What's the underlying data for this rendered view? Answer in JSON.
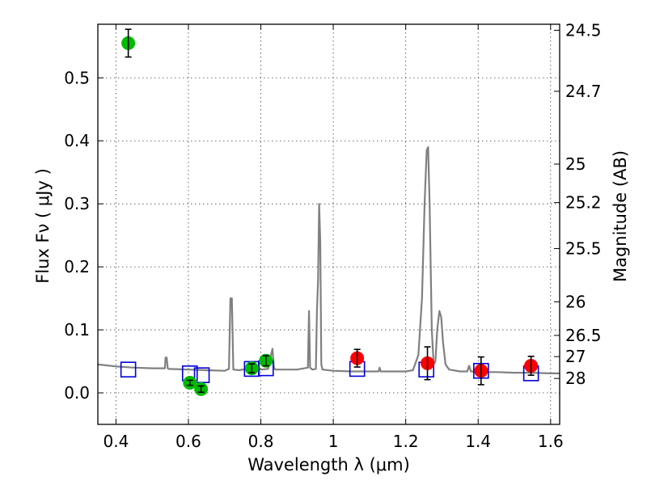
{
  "chart_data": {
    "type": "scatter",
    "xlabel": "Wavelength  λ (μm)",
    "ylabel": "Flux  Fν  ( μJy )",
    "y2label": "Magnitude (AB)",
    "xlim": [
      0.35,
      1.625
    ],
    "ylim": [
      -0.05,
      0.585
    ],
    "xticks": [
      0.4,
      0.6,
      0.8,
      1.0,
      1.2,
      1.4,
      1.6
    ],
    "xtick_labels": [
      "0.4",
      "0.6",
      "0.8",
      "1",
      "1.2",
      "1.4",
      "1.6"
    ],
    "yticks": [
      0.0,
      0.1,
      0.2,
      0.3,
      0.4,
      0.5
    ],
    "ytick_labels": [
      "0.0",
      "0.1",
      "0.2",
      "0.3",
      "0.4",
      "0.5"
    ],
    "mag_ticks": [
      24.5,
      24.7,
      25,
      25.2,
      25.5,
      26,
      26.5,
      27,
      28
    ],
    "mag_tick_labels": [
      "24.5",
      "24.7",
      "25",
      "25.2",
      "25.5",
      "26",
      "26.5",
      "27",
      "28"
    ],
    "grid": true,
    "colors": {
      "spectrum": "#808080",
      "green_points": "#00bb00",
      "red_points": "#ff0000",
      "model_boxes": "#0000dd",
      "error_bars": "#000000"
    },
    "spectrum": {
      "x": [
        0.35,
        0.4,
        0.45,
        0.5,
        0.535,
        0.537,
        0.54,
        0.543,
        0.545,
        0.6,
        0.65,
        0.7,
        0.712,
        0.716,
        0.72,
        0.724,
        0.74,
        0.76,
        0.77,
        0.78,
        0.8,
        0.82,
        0.828,
        0.832,
        0.836,
        0.84,
        0.9,
        0.93,
        0.933,
        0.936,
        0.942,
        0.952,
        0.955,
        0.958,
        0.961,
        0.964,
        0.967,
        0.97,
        1.0,
        1.05,
        1.1,
        1.125,
        1.128,
        1.131,
        1.15,
        1.2,
        1.22,
        1.235,
        1.245,
        1.252,
        1.258,
        1.262,
        1.266,
        1.272,
        1.277,
        1.282,
        1.287,
        1.293,
        1.298,
        1.303,
        1.31,
        1.32,
        1.35,
        1.37,
        1.375,
        1.38,
        1.4,
        1.45,
        1.5,
        1.55,
        1.6,
        1.625
      ],
      "y": [
        0.045,
        0.042,
        0.04,
        0.039,
        0.039,
        0.056,
        0.056,
        0.039,
        0.038,
        0.037,
        0.036,
        0.035,
        0.038,
        0.15,
        0.15,
        0.037,
        0.036,
        0.038,
        0.048,
        0.04,
        0.037,
        0.038,
        0.06,
        0.07,
        0.04,
        0.037,
        0.037,
        0.04,
        0.13,
        0.04,
        0.037,
        0.038,
        0.13,
        0.18,
        0.3,
        0.24,
        0.045,
        0.037,
        0.035,
        0.034,
        0.034,
        0.034,
        0.04,
        0.034,
        0.034,
        0.034,
        0.036,
        0.06,
        0.15,
        0.3,
        0.385,
        0.39,
        0.3,
        0.1,
        0.045,
        0.05,
        0.1,
        0.13,
        0.12,
        0.08,
        0.045,
        0.037,
        0.034,
        0.034,
        0.043,
        0.034,
        0.033,
        0.033,
        0.032,
        0.032,
        0.031,
        0.031
      ]
    },
    "series": [
      {
        "marker": "green-circle",
        "x": [
          0.434,
          0.604,
          0.635,
          0.775,
          0.814
        ],
        "y": [
          0.555,
          0.016,
          0.006,
          0.039,
          0.051
        ],
        "err": [
          0.022,
          0.004,
          0.005,
          0.007,
          0.008
        ]
      },
      {
        "marker": "red-circle",
        "x": [
          1.066,
          1.26,
          1.408,
          1.546
        ],
        "y": [
          0.055,
          0.047,
          0.035,
          0.043
        ],
        "err": [
          0.014,
          0.026,
          0.022,
          0.015
        ]
      },
      {
        "marker": "blue-square",
        "x": [
          0.434,
          0.604,
          0.637,
          0.775,
          0.814,
          1.066,
          1.257,
          1.408,
          1.546
        ],
        "y": [
          0.037,
          0.031,
          0.028,
          0.038,
          0.039,
          0.038,
          0.037,
          0.035,
          0.031
        ]
      }
    ]
  }
}
